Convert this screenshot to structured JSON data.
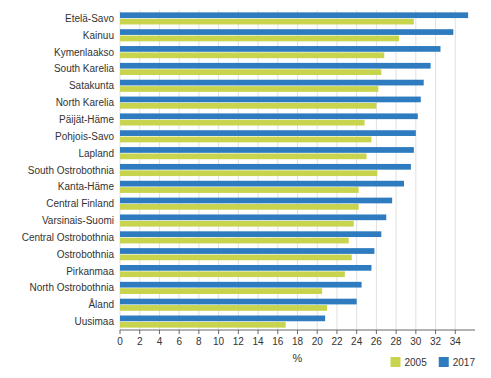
{
  "chart_data": {
    "type": "bar",
    "orientation": "horizontal",
    "categories": [
      "Etelä-Savo",
      "Kainuu",
      "Kymenlaakso",
      "South Karelia",
      "Satakunta",
      "North Karelia",
      "Päijät-Häme",
      "Pohjois-Savo",
      "Lapland",
      "South Ostrobothnia",
      "Kanta-Häme",
      "Central Finland",
      "Varsinais-Suomi",
      "Central Ostrobothnia",
      "Ostrobothnia",
      "Pirkanmaa",
      "North Ostrobothnia",
      "Åland",
      "Uusimaa"
    ],
    "series": [
      {
        "name": "2005",
        "color": "#c8d44e",
        "values": [
          29.8,
          28.3,
          26.8,
          26.5,
          26.2,
          26.0,
          24.8,
          25.5,
          25.0,
          26.1,
          24.2,
          24.2,
          23.7,
          23.2,
          23.5,
          22.8,
          20.5,
          21.0,
          16.8
        ]
      },
      {
        "name": "2017",
        "color": "#2e7cbf",
        "values": [
          35.3,
          33.8,
          32.5,
          31.5,
          30.8,
          30.5,
          30.2,
          30.0,
          29.8,
          29.5,
          28.8,
          27.6,
          27.0,
          26.5,
          25.8,
          25.5,
          24.5,
          24.0,
          20.8
        ]
      }
    ],
    "x_label": "%",
    "xlim": [
      0,
      36
    ],
    "xticks": [
      0,
      2,
      4,
      6,
      8,
      10,
      12,
      14,
      16,
      18,
      20,
      22,
      24,
      26,
      28,
      30,
      32,
      34
    ],
    "grid": true,
    "legend": "lower right"
  }
}
